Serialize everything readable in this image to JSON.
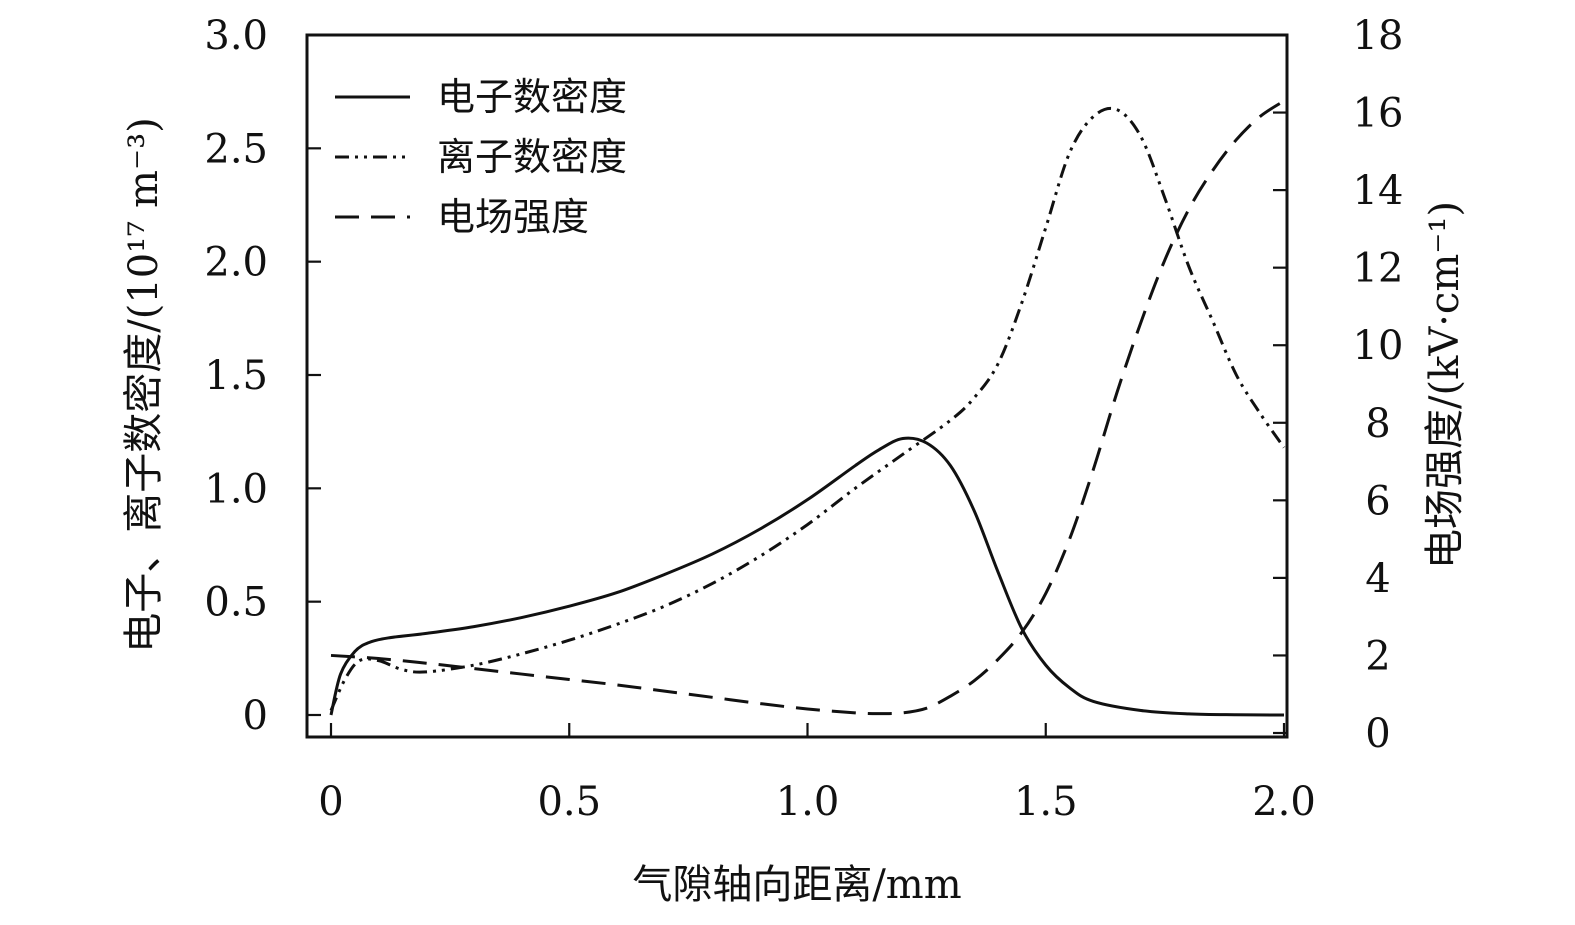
{
  "chart_data": {
    "type": "line",
    "xlabel": "气隙轴向距离/mm",
    "ylabel_left": "电子、离子数密度/(10¹⁷ m⁻³)",
    "ylabel_right": "电场强度/(kV·cm⁻¹)",
    "xlim": [
      0,
      2.0
    ],
    "ylim_left": [
      0,
      3.0
    ],
    "ylim_right": [
      0,
      18
    ],
    "x_ticks": [
      "0",
      "0.5",
      "1.0",
      "1.5",
      "2.0"
    ],
    "y_left_ticks": [
      "0",
      "0.5",
      "1.0",
      "1.5",
      "2.0",
      "2.5",
      "3.0"
    ],
    "y_right_ticks": [
      "0",
      "2",
      "4",
      "6",
      "8",
      "10",
      "12",
      "14",
      "16",
      "18"
    ],
    "grid": false,
    "legend_position": "top-left",
    "series": [
      {
        "name": "电子数密度",
        "axis": "left",
        "style": "solid",
        "x": [
          0,
          0.02,
          0.05,
          0.08,
          0.12,
          0.2,
          0.3,
          0.4,
          0.5,
          0.6,
          0.7,
          0.8,
          0.9,
          1.0,
          1.1,
          1.15,
          1.2,
          1.25,
          1.3,
          1.35,
          1.4,
          1.45,
          1.5,
          1.55,
          1.6,
          1.7,
          1.8,
          1.9,
          2.0
        ],
        "y": [
          0,
          0.18,
          0.28,
          0.32,
          0.34,
          0.36,
          0.39,
          0.43,
          0.48,
          0.54,
          0.62,
          0.71,
          0.82,
          0.95,
          1.1,
          1.17,
          1.22,
          1.2,
          1.1,
          0.9,
          0.63,
          0.38,
          0.22,
          0.12,
          0.06,
          0.02,
          0.005,
          0.001,
          0
        ]
      },
      {
        "name": "离子数密度",
        "axis": "left",
        "style": "dash-dot-dot",
        "x": [
          0,
          0.03,
          0.06,
          0.1,
          0.15,
          0.2,
          0.3,
          0.4,
          0.5,
          0.6,
          0.7,
          0.8,
          0.9,
          1.0,
          1.1,
          1.2,
          1.3,
          1.35,
          1.4,
          1.45,
          1.5,
          1.55,
          1.6,
          1.65,
          1.7,
          1.75,
          1.8,
          1.85,
          1.9,
          1.95,
          2.0
        ],
        "y": [
          0.02,
          0.16,
          0.24,
          0.24,
          0.2,
          0.19,
          0.22,
          0.27,
          0.33,
          0.4,
          0.48,
          0.58,
          0.7,
          0.84,
          1.0,
          1.15,
          1.3,
          1.4,
          1.55,
          1.82,
          2.15,
          2.48,
          2.64,
          2.67,
          2.55,
          2.28,
          1.98,
          1.74,
          1.5,
          1.33,
          1.18
        ]
      },
      {
        "name": "电场强度",
        "axis": "right",
        "style": "dashed",
        "x": [
          0,
          0.1,
          0.2,
          0.3,
          0.4,
          0.5,
          0.6,
          0.7,
          0.8,
          0.9,
          1.0,
          1.1,
          1.15,
          1.2,
          1.25,
          1.3,
          1.35,
          1.4,
          1.45,
          1.5,
          1.55,
          1.6,
          1.65,
          1.7,
          1.75,
          1.8,
          1.85,
          1.9,
          1.95,
          2.0
        ],
        "y": [
          2.0,
          1.92,
          1.8,
          1.66,
          1.52,
          1.38,
          1.24,
          1.08,
          0.92,
          0.76,
          0.62,
          0.52,
          0.5,
          0.52,
          0.64,
          0.95,
          1.35,
          1.9,
          2.6,
          3.6,
          5.0,
          6.8,
          8.8,
          10.6,
          12.2,
          13.5,
          14.5,
          15.3,
          15.9,
          16.3
        ]
      }
    ]
  }
}
